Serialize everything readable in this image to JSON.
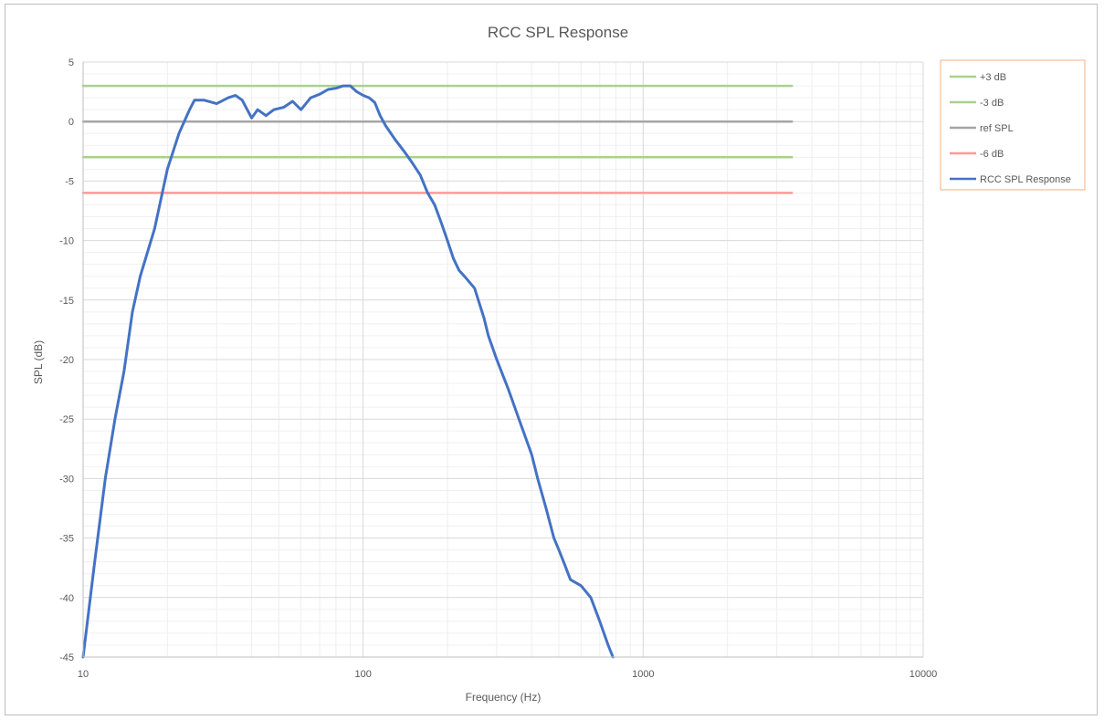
{
  "chart_data": {
    "type": "line",
    "title": "RCC SPL Response",
    "xlabel": "Frequency (Hz)",
    "ylabel": "SPL (dB)",
    "x_scale": "log",
    "xlim": [
      10,
      10000
    ],
    "ylim": [
      -45,
      5
    ],
    "x_ticks": [
      "10",
      "100",
      "1000",
      "10000"
    ],
    "y_ticks": [
      "5",
      "0",
      "-5",
      "-10",
      "-15",
      "-20",
      "-25",
      "-30",
      "-35",
      "-40",
      "-45"
    ],
    "grid": true,
    "legend_position": "top-right",
    "series": [
      {
        "name": "+3 dB",
        "color": "#a9d18e",
        "x": [
          10,
          3400
        ],
        "y": [
          3,
          3
        ]
      },
      {
        "name": "-3 dB",
        "color": "#a9d18e",
        "x": [
          10,
          3400
        ],
        "y": [
          -3,
          -3
        ]
      },
      {
        "name": "ref SPL",
        "color": "#a6a6a6",
        "x": [
          10,
          3400
        ],
        "y": [
          0,
          0
        ]
      },
      {
        "name": "-6 dB",
        "color": "#ff9999",
        "x": [
          10,
          3400
        ],
        "y": [
          -6,
          -6
        ]
      },
      {
        "name": "RCC SPL Response",
        "color": "#4472c4",
        "x": [
          10,
          11,
          12,
          13,
          14,
          15,
          16,
          18,
          20,
          22,
          24,
          25,
          27,
          30,
          33,
          35,
          37,
          40,
          42,
          45,
          48,
          52,
          56,
          60,
          65,
          70,
          75,
          80,
          85,
          90,
          95,
          100,
          105,
          110,
          115,
          120,
          130,
          140,
          150,
          160,
          170,
          180,
          190,
          200,
          210,
          220,
          230,
          250,
          270,
          280,
          300,
          330,
          360,
          400,
          420,
          450,
          480,
          500,
          520,
          550,
          600,
          650,
          700,
          750,
          780
        ],
        "y": [
          -45,
          -37,
          -30,
          -25,
          -21,
          -16,
          -13,
          -9,
          -4,
          -1,
          1,
          1.8,
          1.8,
          1.5,
          2,
          2.2,
          1.8,
          0.3,
          1,
          0.5,
          1,
          1.2,
          1.7,
          1,
          2,
          2.3,
          2.7,
          2.8,
          3,
          3,
          2.5,
          2.2,
          2,
          1.6,
          0.5,
          -0.3,
          -1.5,
          -2.5,
          -3.5,
          -4.5,
          -6,
          -7,
          -8.5,
          -10,
          -11.5,
          -12.5,
          -13,
          -14,
          -16.5,
          -18,
          -20,
          -22.5,
          -25,
          -28,
          -30,
          -32.5,
          -35,
          -36,
          -37,
          -38.5,
          -39,
          -40,
          -42,
          -44,
          -45
        ]
      }
    ]
  }
}
